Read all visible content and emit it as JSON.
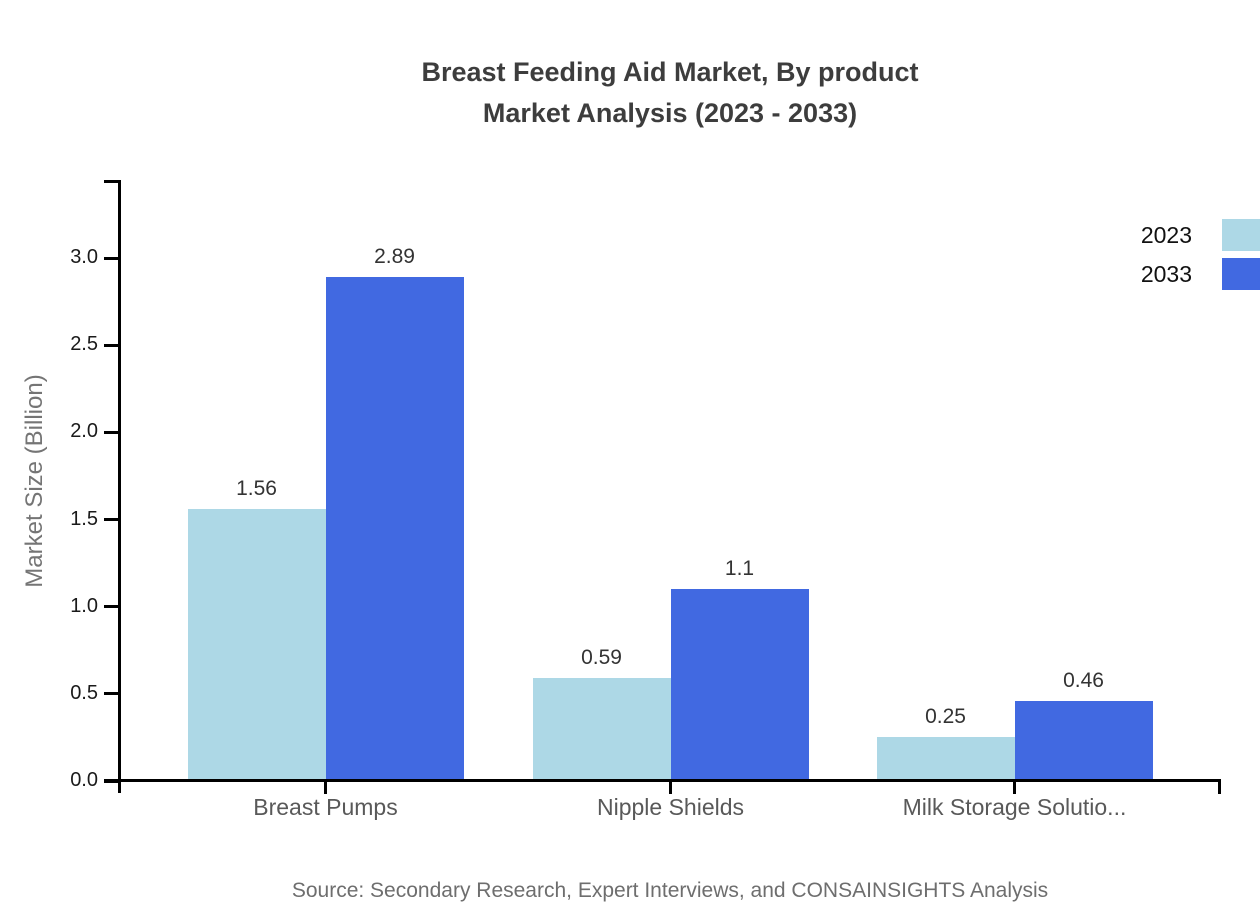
{
  "chart": {
    "title_line1": "Breast Feeding Aid Market, By product",
    "title_line2": "Market Analysis (2023 - 2033)",
    "y_axis_label": "Market Size (Billion)",
    "source": "Source: Secondary Research, Expert Interviews, and CONSAINSIGHTS Analysis"
  },
  "chart_data": {
    "type": "bar",
    "title": "Breast Feeding Aid Market, By product Market Analysis (2023 - 2033)",
    "xlabel": "",
    "ylabel": "Market Size (Billion)",
    "categories": [
      "Breast Pumps",
      "Nipple Shields",
      "Milk Storage Solutio..."
    ],
    "series": [
      {
        "name": "2023",
        "color": "#ADD8E6",
        "values": [
          1.56,
          0.59,
          0.25
        ],
        "labels": [
          "1.56",
          "0.59",
          "0.25"
        ]
      },
      {
        "name": "2033",
        "color": "#4169E1",
        "values": [
          2.89,
          1.1,
          0.46
        ],
        "labels": [
          "2.89",
          "1.1",
          "0.46"
        ]
      }
    ],
    "ylim": [
      0,
      3.45
    ],
    "y_ticks": [
      0.0,
      0.5,
      1.0,
      1.5,
      2.0,
      2.5,
      3.0
    ],
    "y_tick_labels": [
      "0.0",
      "0.5",
      "1.0",
      "1.5",
      "2.0",
      "2.5",
      "3.0"
    ],
    "grid": false,
    "legend_position": "top-right",
    "source": "Source: Secondary Research, Expert Interviews, and CONSAINSIGHTS Analysis"
  }
}
